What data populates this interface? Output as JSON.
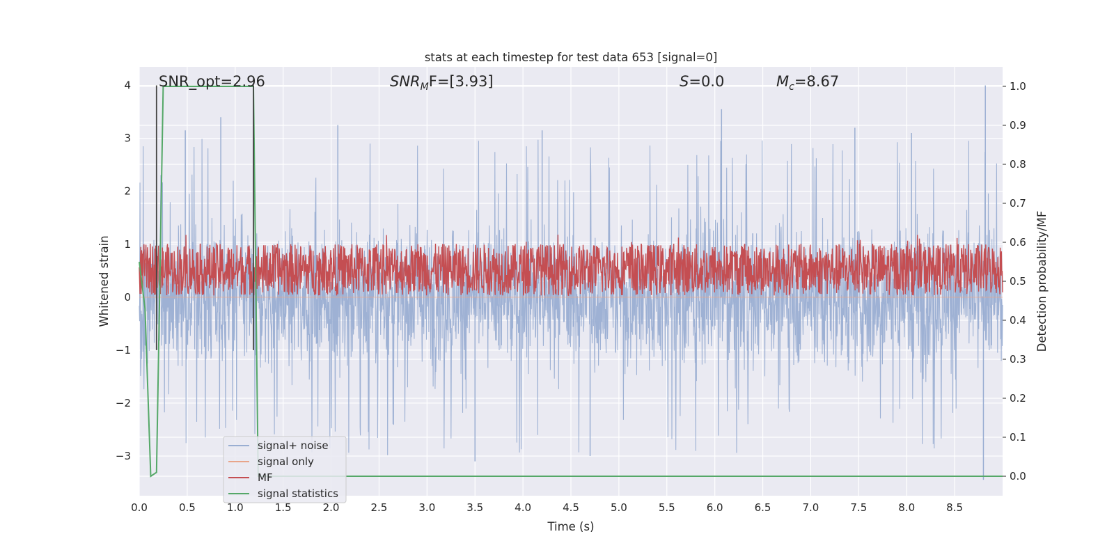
{
  "chart_data": {
    "type": "line",
    "title": "stats at each timestep for test data 653 [signal=0]",
    "xlabel": "Time (s)",
    "ylabel": "Whitened strain",
    "y2label": "Detection probability/MF",
    "xlim": [
      0.0,
      9.0
    ],
    "ylim": [
      -3.75,
      4.35
    ],
    "y2lim": [
      -0.05,
      1.05
    ],
    "xticks": [
      "0.0",
      "0.5",
      "1.0",
      "1.5",
      "2.0",
      "2.5",
      "3.0",
      "3.5",
      "4.0",
      "4.5",
      "5.0",
      "5.5",
      "6.0",
      "6.5",
      "7.0",
      "7.5",
      "8.0",
      "8.5"
    ],
    "yticks": [
      "−3",
      "−2",
      "−1",
      "0",
      "1",
      "2",
      "3",
      "4"
    ],
    "y2ticks": [
      "0.0",
      "0.1",
      "0.2",
      "0.3",
      "0.4",
      "0.5",
      "0.6",
      "0.7",
      "0.8",
      "0.9",
      "1.0"
    ],
    "grid": true,
    "legend_position": "lower-left",
    "colors": {
      "background": "#eaeaf2",
      "grid": "#ffffff",
      "noise": "#9aaed2",
      "signal_only": "#e8a58a",
      "mf": "#c44e52",
      "stats": "#55a868",
      "marker": "#444444"
    },
    "series": [
      {
        "name": "signal+ noise",
        "axis": "left",
        "style": "noise band",
        "y_min_approx": -3.45,
        "y_max_approx": 4.0,
        "spike_peaks": [
          {
            "x": 0.48,
            "y": 3.15
          },
          {
            "x": 0.85,
            "y": 3.4
          },
          {
            "x": 2.07,
            "y": 3.25
          },
          {
            "x": 4.2,
            "y": 3.15
          },
          {
            "x": 6.07,
            "y": 3.55
          },
          {
            "x": 7.46,
            "y": 3.2
          },
          {
            "x": 8.05,
            "y": 3.1
          },
          {
            "x": 8.82,
            "y": 4.0
          },
          {
            "x": 3.5,
            "y": -3.1
          },
          {
            "x": 4.7,
            "y": -3.0
          },
          {
            "x": 8.8,
            "y": -3.45
          }
        ]
      },
      {
        "name": "signal only",
        "axis": "left",
        "style": "line",
        "x": [
          0.0,
          9.0
        ],
        "y": [
          0.0,
          0.0
        ]
      },
      {
        "name": "MF",
        "axis": "right",
        "style": "noise band",
        "y_min_approx": 0.46,
        "y_max_approx": 0.6
      },
      {
        "name": "signal statistics",
        "axis": "right",
        "style": "line",
        "x": [
          0.0,
          0.06,
          0.12,
          0.18,
          0.25,
          0.3,
          1.15,
          1.19,
          1.24,
          1.3,
          9.0
        ],
        "y": [
          0.55,
          0.43,
          0.0,
          0.01,
          1.0,
          1.0,
          1.0,
          1.0,
          0.0,
          0.0,
          0.0
        ]
      }
    ],
    "vlines": [
      {
        "x": 0.18,
        "y": [
          -1.0,
          4.0
        ]
      },
      {
        "x": 1.19,
        "y": [
          -1.0,
          4.0
        ]
      }
    ],
    "annotations": {
      "snr_opt": "SNR_opt=2.96",
      "snr_mf_label": "SNR",
      "snr_mf_sub": "M",
      "snr_mf_rest": "F=[3.93]",
      "s_label": "S",
      "s_rest": "=0.0",
      "mc_label": "M",
      "mc_sub": "c",
      "mc_rest": "=8.67"
    }
  }
}
